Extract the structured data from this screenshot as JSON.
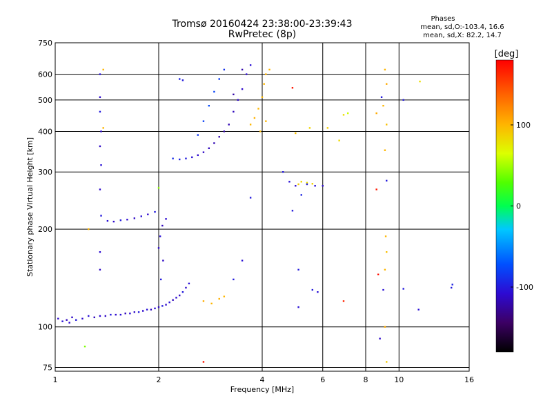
{
  "chart_data": {
    "type": "scatter",
    "title": "Tromsø 20160424 23:38:00-23:39:43",
    "subtitle": "RwPretec (8p)",
    "xlabel": "Frequency [MHz]",
    "ylabel": "Stationary phase Virtual Height [km]",
    "x_scale": "log",
    "y_scale": "log",
    "xlim": [
      1,
      16
    ],
    "ylim": [
      73,
      750
    ],
    "grid": true,
    "x_ticks": [
      1,
      2,
      4,
      6,
      8,
      10,
      16
    ],
    "x_tick_labels": [
      "1",
      "2",
      "4",
      "6",
      "8",
      "10",
      "16"
    ],
    "y_ticks": [
      75,
      100,
      200,
      300,
      400,
      500,
      600,
      750
    ],
    "y_tick_labels": [
      "75",
      "100",
      "200",
      "300",
      "400",
      "500",
      "600",
      "750"
    ],
    "info": {
      "title": "Phases",
      "line1": "mean, sd,O:-103.4, 16.6",
      "line2": "mean, sd,X:  82.2, 14.7"
    },
    "colorbar": {
      "label": "[deg]",
      "min": -180,
      "max": 180,
      "ticks": [
        100,
        0,
        -100
      ],
      "tick_labels": [
        "100",
        "0",
        "-100"
      ]
    },
    "series": [
      {
        "points": [
          [
            1.02,
            106,
            -110
          ],
          [
            1.05,
            104,
            -105
          ],
          [
            1.08,
            105,
            -115
          ],
          [
            1.1,
            103,
            -108
          ],
          [
            1.12,
            107,
            -112
          ],
          [
            1.15,
            105,
            -100
          ],
          [
            1.2,
            106,
            -110
          ],
          [
            1.25,
            108,
            -105
          ],
          [
            1.3,
            107,
            -115
          ],
          [
            1.35,
            108,
            -108
          ],
          [
            1.4,
            108,
            -112
          ],
          [
            1.45,
            109,
            -100
          ],
          [
            1.5,
            109,
            -110
          ],
          [
            1.55,
            109,
            -105
          ],
          [
            1.6,
            110,
            -115
          ],
          [
            1.65,
            110,
            -108
          ],
          [
            1.7,
            111,
            -112
          ],
          [
            1.75,
            111,
            -100
          ],
          [
            1.8,
            112,
            -110
          ],
          [
            1.85,
            113,
            -105
          ],
          [
            1.9,
            113,
            -115
          ],
          [
            1.95,
            114,
            -108
          ],
          [
            2.0,
            115,
            -112
          ],
          [
            2.05,
            116,
            -100
          ],
          [
            2.1,
            117,
            -110
          ],
          [
            2.15,
            119,
            -105
          ],
          [
            2.2,
            121,
            -115
          ],
          [
            2.25,
            123,
            -108
          ],
          [
            2.3,
            125,
            -112
          ],
          [
            2.35,
            128,
            -100
          ],
          [
            2.4,
            132,
            -110
          ],
          [
            2.45,
            136,
            -105
          ]
        ]
      },
      {
        "points": [
          [
            1.42,
            212,
            -105
          ],
          [
            1.48,
            211,
            -110
          ],
          [
            1.55,
            213,
            -100
          ],
          [
            1.62,
            214,
            -108
          ],
          [
            1.7,
            216,
            -112
          ],
          [
            1.78,
            219,
            -105
          ],
          [
            1.86,
            222,
            -110
          ],
          [
            1.95,
            226,
            -100
          ],
          [
            2.0,
            175,
            -110
          ],
          [
            2.02,
            190,
            -105
          ],
          [
            2.05,
            205,
            -115
          ],
          [
            2.1,
            215,
            -108
          ],
          [
            2.06,
            160,
            -112
          ],
          [
            2.03,
            140,
            -100
          ]
        ]
      },
      {
        "points": [
          [
            1.35,
            600,
            -105
          ],
          [
            1.35,
            510,
            -110
          ],
          [
            1.35,
            460,
            -100
          ],
          [
            1.36,
            400,
            -108
          ],
          [
            1.35,
            360,
            -112
          ],
          [
            1.36,
            315,
            -105
          ],
          [
            1.35,
            265,
            -110
          ],
          [
            1.36,
            220,
            -100
          ],
          [
            1.35,
            170,
            -108
          ],
          [
            1.35,
            150,
            -112
          ]
        ]
      },
      {
        "points": [
          [
            1.38,
            620,
            100
          ],
          [
            1.38,
            410,
            100
          ],
          [
            1.25,
            200,
            100
          ]
        ]
      },
      {
        "points": [
          [
            2.2,
            330,
            -90
          ],
          [
            2.3,
            328,
            -95
          ],
          [
            2.4,
            330,
            -100
          ],
          [
            2.5,
            333,
            -105
          ],
          [
            2.6,
            338,
            -110
          ],
          [
            2.7,
            345,
            -112
          ],
          [
            2.8,
            355,
            -115
          ],
          [
            2.9,
            368,
            -118
          ],
          [
            3.0,
            385,
            -120
          ],
          [
            3.1,
            400,
            -122
          ],
          [
            2.6,
            390,
            -85
          ],
          [
            2.7,
            430,
            -80
          ],
          [
            2.8,
            480,
            -75
          ],
          [
            2.9,
            530,
            -78
          ],
          [
            3.0,
            580,
            -82
          ],
          [
            3.1,
            620,
            -88
          ],
          [
            2.3,
            580,
            -95
          ],
          [
            2.35,
            575,
            -100
          ]
        ]
      },
      {
        "points": [
          [
            3.2,
            420,
            -118
          ],
          [
            3.3,
            460,
            -115
          ],
          [
            3.4,
            500,
            -112
          ],
          [
            3.5,
            540,
            -110
          ],
          [
            3.6,
            600,
            -108
          ],
          [
            3.7,
            640,
            -105
          ],
          [
            3.3,
            520,
            -122
          ],
          [
            3.5,
            620,
            -120
          ]
        ]
      },
      {
        "points": [
          [
            3.7,
            420,
            100
          ],
          [
            3.8,
            440,
            102
          ],
          [
            3.9,
            470,
            100
          ],
          [
            4.0,
            510,
            98
          ],
          [
            4.05,
            560,
            100
          ],
          [
            4.1,
            600,
            102
          ],
          [
            4.2,
            620,
            100
          ],
          [
            3.95,
            400,
            98
          ],
          [
            4.1,
            430,
            100
          ],
          [
            2.7,
            120,
            105
          ],
          [
            2.85,
            118,
            100
          ],
          [
            3.0,
            122,
            102
          ],
          [
            3.1,
            124,
            100
          ]
        ]
      },
      {
        "points": [
          [
            5.2,
            280,
            85
          ],
          [
            5.4,
            278,
            80
          ],
          [
            5.6,
            276,
            88
          ],
          [
            5.1,
            275,
            90
          ],
          [
            5.5,
            410,
            85
          ],
          [
            6.2,
            410,
            88
          ],
          [
            6.9,
            450,
            80
          ],
          [
            6.7,
            375,
            82
          ],
          [
            5.0,
            395,
            95
          ],
          [
            9.1,
            620,
            100
          ],
          [
            9.2,
            560,
            105
          ],
          [
            9.0,
            480,
            100
          ],
          [
            9.2,
            420,
            95
          ],
          [
            9.1,
            350,
            100
          ],
          [
            9.15,
            190,
            100
          ],
          [
            9.2,
            170,
            95
          ],
          [
            9.1,
            150,
            100
          ],
          [
            9.1,
            100,
            105
          ],
          [
            9.2,
            78,
            90
          ],
          [
            11.5,
            570,
            80
          ],
          [
            8.6,
            455,
            105
          ]
        ]
      },
      {
        "points": [
          [
            4.6,
            300,
            -100
          ],
          [
            4.8,
            280,
            -105
          ],
          [
            5.0,
            272,
            -110
          ],
          [
            5.2,
            255,
            -95
          ],
          [
            5.4,
            275,
            -100
          ],
          [
            5.7,
            272,
            -105
          ],
          [
            6.0,
            272,
            -108
          ],
          [
            5.6,
            130,
            -100
          ],
          [
            5.8,
            128,
            -105
          ],
          [
            4.9,
            228,
            -100
          ],
          [
            5.1,
            150,
            -100
          ],
          [
            5.1,
            115,
            -105
          ],
          [
            3.7,
            250,
            -100
          ],
          [
            3.5,
            160,
            -105
          ],
          [
            3.3,
            140,
            -100
          ],
          [
            9.2,
            282,
            -100
          ],
          [
            9.0,
            130,
            -105
          ],
          [
            8.8,
            92,
            -110
          ],
          [
            10.3,
            131,
            -100
          ],
          [
            11.4,
            113,
            -105
          ],
          [
            14.2,
            132,
            -100
          ],
          [
            14.3,
            135,
            -95
          ],
          [
            8.9,
            510,
            -100
          ],
          [
            10.3,
            500,
            -100
          ]
        ]
      },
      {
        "points": [
          [
            2.7,
            78,
            170
          ],
          [
            8.6,
            265,
            170
          ],
          [
            8.7,
            145,
            175
          ],
          [
            4.9,
            545,
            170
          ],
          [
            6.9,
            120,
            165
          ]
        ]
      },
      {
        "points": [
          [
            1.22,
            87,
            40
          ],
          [
            7.1,
            455,
            60
          ],
          [
            2.0,
            268,
            45
          ]
        ]
      }
    ]
  }
}
